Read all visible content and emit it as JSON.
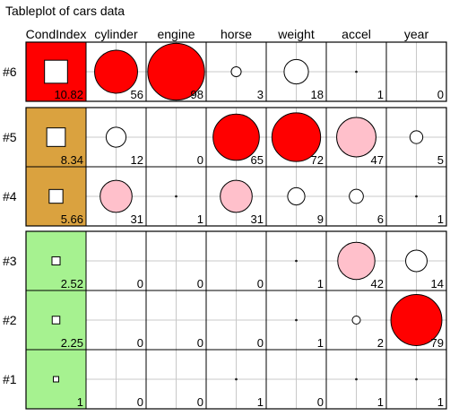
{
  "chart_data": {
    "type": "tableplot",
    "title": "Tableplot of cars data",
    "columns": [
      "CondIndex",
      "cylinder",
      "engine",
      "horse",
      "weight",
      "accel",
      "year"
    ],
    "groups": [
      {
        "rows": [
          "#6"
        ],
        "color": "#ff0000"
      },
      {
        "rows": [
          "#5",
          "#4"
        ],
        "color": "#daa23f"
      },
      {
        "rows": [
          "#3",
          "#2",
          "#1"
        ],
        "color": "#a6f290"
      }
    ],
    "rows": [
      {
        "label": "#6",
        "cond_index": 10.82,
        "values": [
          56,
          98,
          3,
          18,
          1,
          0
        ]
      },
      {
        "label": "#5",
        "cond_index": 8.34,
        "values": [
          12,
          0,
          65,
          72,
          47,
          5
        ]
      },
      {
        "label": "#4",
        "cond_index": 5.66,
        "values": [
          31,
          1,
          31,
          9,
          6,
          1
        ]
      },
      {
        "label": "#3",
        "cond_index": 2.52,
        "values": [
          0,
          0,
          0,
          1,
          42,
          14
        ]
      },
      {
        "label": "#2",
        "cond_index": 2.25,
        "values": [
          0,
          0,
          0,
          1,
          2,
          79
        ]
      },
      {
        "label": "#1",
        "cond_index": 1,
        "values": [
          0,
          0,
          1,
          0,
          1,
          1
        ]
      }
    ],
    "circle_colors": {
      "large": "#ff0000",
      "medium": "#ffc0cb",
      "small": "#ffffff"
    },
    "value_range": [
      0,
      100
    ],
    "grid": true
  }
}
